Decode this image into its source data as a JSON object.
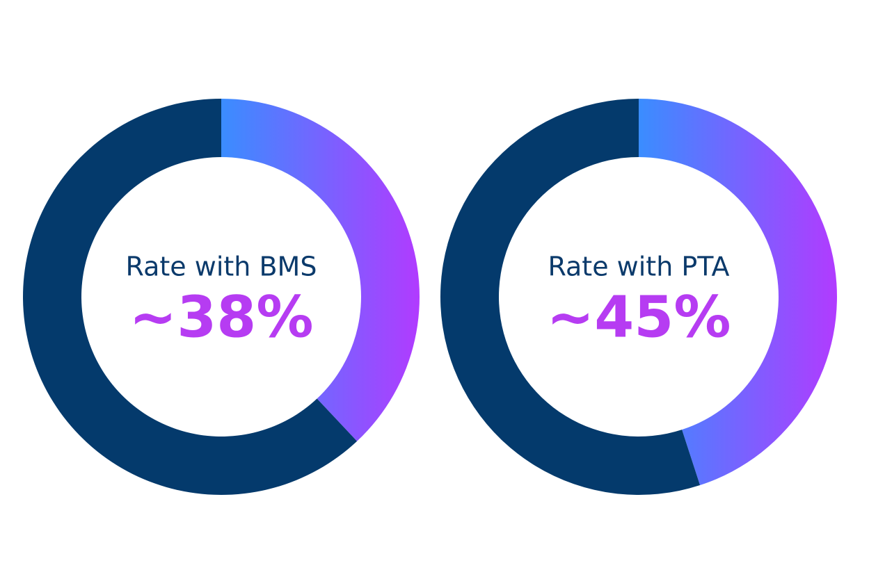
{
  "chart_data": [
    {
      "type": "donut",
      "title": "Rate with BMS",
      "values": [
        38,
        62
      ],
      "value_labels": [
        "~38%",
        null
      ],
      "colors": [
        [
          "#3a8dff",
          "#b13bff"
        ],
        "#043a6c"
      ]
    },
    {
      "type": "donut",
      "title": "Rate with PTA",
      "values": [
        45,
        55
      ],
      "value_labels": [
        "~45%",
        null
      ],
      "colors": [
        [
          "#3a8dff",
          "#b13bff"
        ],
        "#043a6c"
      ]
    }
  ]
}
